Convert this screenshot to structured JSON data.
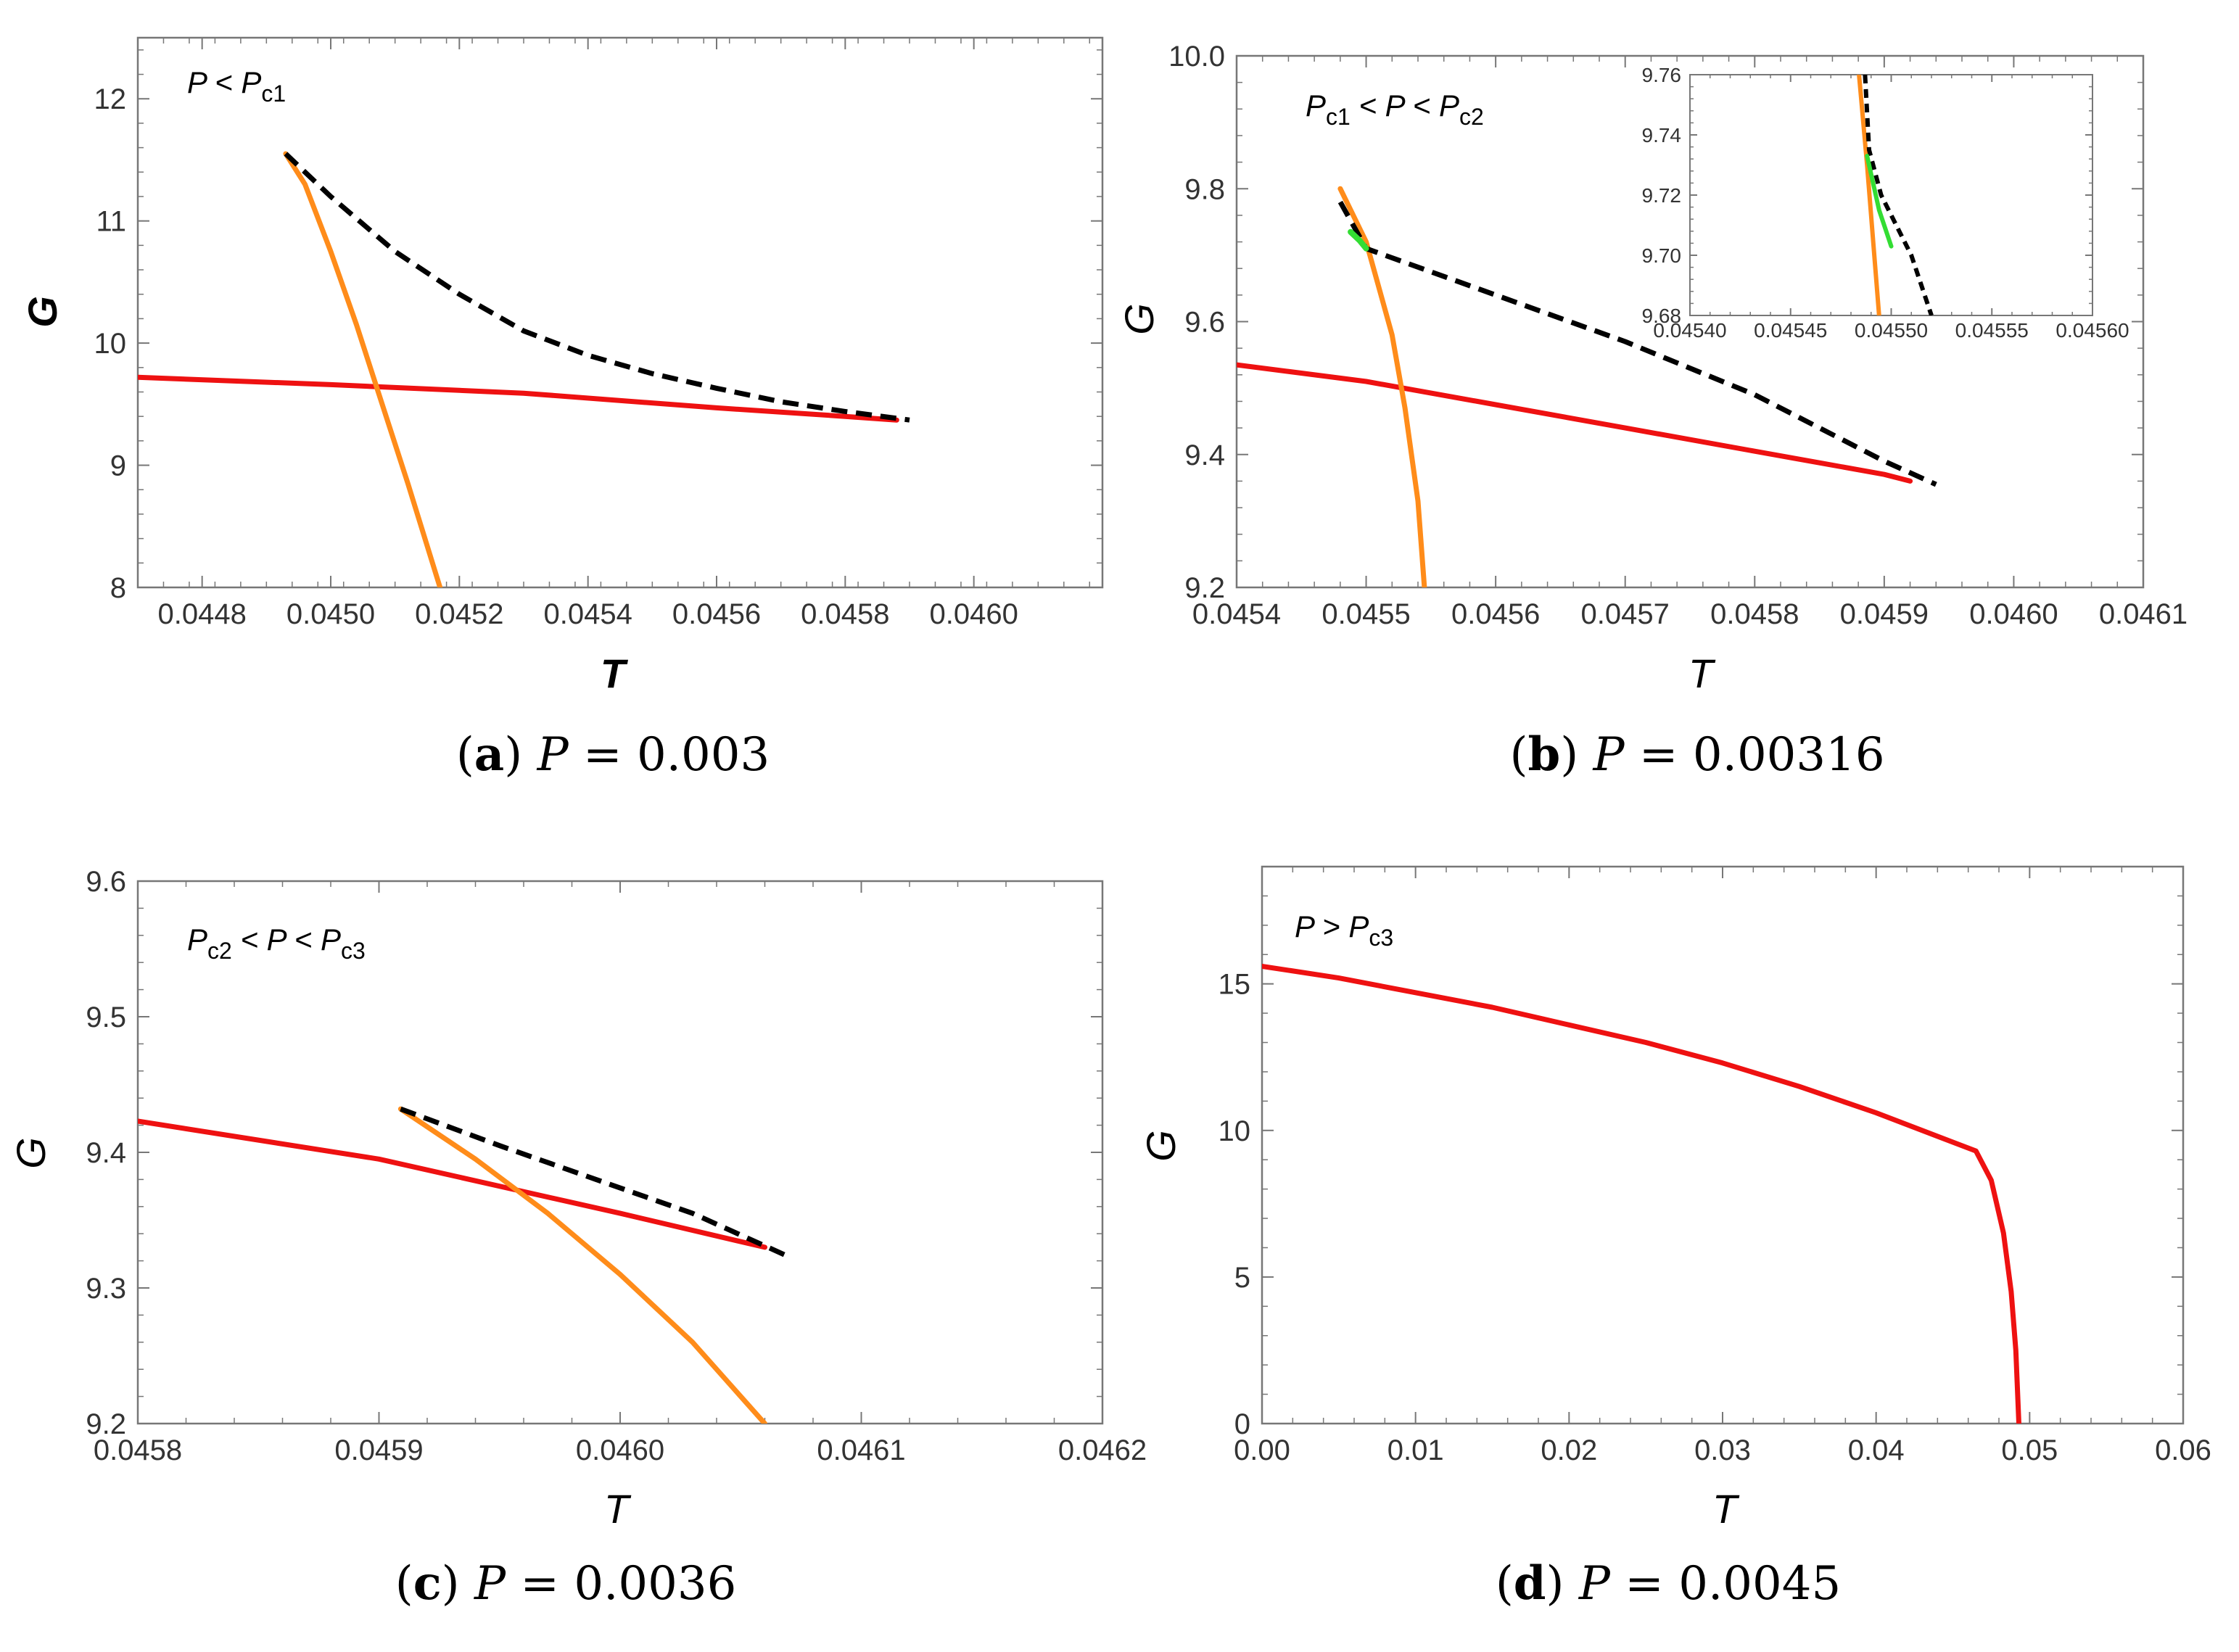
{
  "figure": {
    "colors": {
      "red": "#ee1111",
      "orange": "#ff8c1a",
      "black": "#000000",
      "green": "#33dd33",
      "frame": "#777777"
    }
  },
  "chart_data": [
    {
      "id": "a",
      "type": "line",
      "title": "",
      "xlabel": "T",
      "ylabel": "G",
      "xlim": [
        0.0447,
        0.0462
      ],
      "ylim": [
        8,
        12.5
      ],
      "xticks": [
        0.0448,
        0.045,
        0.0452,
        0.0454,
        0.0456,
        0.0458,
        0.046
      ],
      "xtick_labels": [
        "0.0448",
        "0.0450",
        "0.0452",
        "0.0454",
        "0.0456",
        "0.0458",
        "0.0460"
      ],
      "yticks": [
        8,
        9,
        10,
        11,
        12
      ],
      "ytick_labels": [
        "8",
        "9",
        "10",
        "11",
        "12"
      ],
      "annotation": {
        "main": "P",
        "op": " < ",
        "sym": "P",
        "sub": "c1"
      },
      "caption": {
        "letter": "a",
        "var": "P",
        "eq": " = 0.003"
      },
      "series": [
        {
          "name": "red branch",
          "color": "red",
          "dash": false,
          "points": [
            [
              0.0447,
              9.72
            ],
            [
              0.045,
              9.66
            ],
            [
              0.0453,
              9.59
            ],
            [
              0.0456,
              9.47
            ],
            [
              0.0458,
              9.4
            ],
            [
              0.04588,
              9.37
            ]
          ]
        },
        {
          "name": "orange branch",
          "color": "orange",
          "dash": false,
          "points": [
            [
              0.04493,
              11.55
            ],
            [
              0.04496,
              11.3
            ],
            [
              0.045,
              10.75
            ],
            [
              0.04504,
              10.15
            ],
            [
              0.04508,
              9.5
            ],
            [
              0.04512,
              8.85
            ],
            [
              0.04517,
              8.0
            ]
          ]
        },
        {
          "name": "black dashed branch",
          "color": "black",
          "dash": true,
          "points": [
            [
              0.04493,
              11.55
            ],
            [
              0.045,
              11.2
            ],
            [
              0.0451,
              10.75
            ],
            [
              0.0452,
              10.4
            ],
            [
              0.0453,
              10.1
            ],
            [
              0.0454,
              9.9
            ],
            [
              0.0455,
              9.75
            ],
            [
              0.0456,
              9.63
            ],
            [
              0.0457,
              9.52
            ],
            [
              0.0458,
              9.44
            ],
            [
              0.0459,
              9.37
            ]
          ]
        }
      ]
    },
    {
      "id": "b",
      "type": "line",
      "title": "",
      "xlabel": "T",
      "ylabel": "G",
      "xlim": [
        0.0454,
        0.0461
      ],
      "ylim": [
        9.2,
        10.0
      ],
      "xticks": [
        0.0454,
        0.0455,
        0.0456,
        0.0457,
        0.0458,
        0.0459,
        0.046,
        0.0461
      ],
      "xtick_labels": [
        "0.0454",
        "0.0455",
        "0.0456",
        "0.0457",
        "0.0458",
        "0.0459",
        "0.0460",
        "0.0461"
      ],
      "yticks": [
        9.2,
        9.4,
        9.6,
        9.8,
        10.0
      ],
      "ytick_labels": [
        "9.2",
        "9.4",
        "9.6",
        "9.8",
        "10.0"
      ],
      "annotation": {
        "main": "P",
        "mainsub": "c1",
        "op": " < P < ",
        "sym": "P",
        "sub": "c2"
      },
      "caption": {
        "letter": "b",
        "var": "P",
        "eq": " = 0.00316"
      },
      "series": [
        {
          "name": "red branch",
          "color": "red",
          "dash": false,
          "points": [
            [
              0.0454,
              9.535
            ],
            [
              0.0455,
              9.51
            ],
            [
              0.0456,
              9.475
            ],
            [
              0.0457,
              9.44
            ],
            [
              0.0458,
              9.405
            ],
            [
              0.0459,
              9.37
            ],
            [
              0.04592,
              9.36
            ]
          ]
        },
        {
          "name": "orange branch",
          "color": "orange",
          "dash": false,
          "points": [
            [
              0.04548,
              9.8
            ],
            [
              0.0455,
              9.72
            ],
            [
              0.04552,
              9.58
            ],
            [
              0.04553,
              9.47
            ],
            [
              0.04554,
              9.33
            ],
            [
              0.045545,
              9.2
            ]
          ]
        },
        {
          "name": "black dashed branch",
          "color": "black",
          "dash": true,
          "points": [
            [
              0.04548,
              9.78
            ],
            [
              0.0455,
              9.71
            ],
            [
              0.0456,
              9.64
            ],
            [
              0.0457,
              9.57
            ],
            [
              0.0458,
              9.49
            ],
            [
              0.0459,
              9.39
            ],
            [
              0.04594,
              9.355
            ]
          ]
        },
        {
          "name": "green branch",
          "color": "green",
          "dash": false,
          "points": [
            [
              0.045488,
              9.735
            ],
            [
              0.045495,
              9.722
            ],
            [
              0.0455,
              9.71
            ]
          ]
        }
      ],
      "inset": {
        "xlim": [
          0.0454,
          0.0456
        ],
        "ylim": [
          9.68,
          9.76
        ],
        "xticks": [
          0.0454,
          0.04545,
          0.0455,
          0.04555,
          0.0456
        ],
        "xtick_labels": [
          "0.04540",
          "0.04545",
          "0.04550",
          "0.04555",
          "0.04560"
        ],
        "yticks": [
          9.68,
          9.7,
          9.72,
          9.74,
          9.76
        ],
        "ytick_labels": [
          "9.68",
          "9.70",
          "9.72",
          "9.74",
          "9.76"
        ],
        "series": [
          {
            "name": "orange branch",
            "color": "orange",
            "dash": false,
            "points": [
              [
                0.045484,
                9.76
              ],
              [
                0.045488,
                9.73
              ],
              [
                0.045494,
                9.68
              ]
            ]
          },
          {
            "name": "black dashed branch",
            "color": "black",
            "dash": true,
            "points": [
              [
                0.045487,
                9.76
              ],
              [
                0.045489,
                9.735
              ],
              [
                0.045495,
                9.72
              ],
              [
                0.04551,
                9.7
              ],
              [
                0.04552,
                9.68
              ]
            ]
          },
          {
            "name": "green branch",
            "color": "green",
            "dash": false,
            "points": [
              [
                0.045488,
                9.733
              ],
              [
                0.045494,
                9.715
              ],
              [
                0.0455,
                9.703
              ]
            ]
          }
        ]
      }
    },
    {
      "id": "c",
      "type": "line",
      "title": "",
      "xlabel": "T",
      "ylabel": "G",
      "xlim": [
        0.0458,
        0.0462
      ],
      "ylim": [
        9.2,
        9.6
      ],
      "xticks": [
        0.0458,
        0.0459,
        0.046,
        0.0461,
        0.0462
      ],
      "xtick_labels": [
        "0.0458",
        "0.0459",
        "0.0460",
        "0.0461",
        "0.0462"
      ],
      "yticks": [
        9.2,
        9.3,
        9.4,
        9.5,
        9.6
      ],
      "ytick_labels": [
        "9.2",
        "9.3",
        "9.4",
        "9.5",
        "9.6"
      ],
      "annotation": {
        "main": "P",
        "mainsub": "c2",
        "op": " < P < ",
        "sym": "P",
        "sub": "c3"
      },
      "caption": {
        "letter": "c",
        "var": "P",
        "eq": " = 0.0036"
      },
      "series": [
        {
          "name": "red branch",
          "color": "red",
          "dash": false,
          "points": [
            [
              0.0458,
              9.423
            ],
            [
              0.0459,
              9.395
            ],
            [
              0.046,
              9.355
            ],
            [
              0.04606,
              9.33
            ]
          ]
        },
        {
          "name": "orange branch",
          "color": "orange",
          "dash": false,
          "points": [
            [
              0.045909,
              9.432
            ],
            [
              0.04594,
              9.395
            ],
            [
              0.04597,
              9.355
            ],
            [
              0.046,
              9.31
            ],
            [
              0.04603,
              9.26
            ],
            [
              0.04606,
              9.2
            ]
          ]
        },
        {
          "name": "black dashed branch",
          "color": "black",
          "dash": true,
          "points": [
            [
              0.045909,
              9.432
            ],
            [
              0.04595,
              9.405
            ],
            [
              0.04599,
              9.38
            ],
            [
              0.04603,
              9.355
            ],
            [
              0.04607,
              9.323
            ]
          ]
        }
      ]
    },
    {
      "id": "d",
      "type": "line",
      "title": "",
      "xlabel": "T",
      "ylabel": "G",
      "xlim": [
        0,
        0.06
      ],
      "ylim": [
        0,
        19
      ],
      "xticks": [
        0,
        0.01,
        0.02,
        0.03,
        0.04,
        0.05,
        0.06
      ],
      "xtick_labels": [
        "0.00",
        "0.01",
        "0.02",
        "0.03",
        "0.04",
        "0.05",
        "0.06"
      ],
      "yticks": [
        0,
        5,
        10,
        15
      ],
      "ytick_labels": [
        "0",
        "5",
        "10",
        "15"
      ],
      "annotation": {
        "main": "P",
        "op": " > ",
        "sym": "P",
        "sub": "c3"
      },
      "caption": {
        "letter": "d",
        "var": "P",
        "eq": " = 0.0045"
      },
      "series": [
        {
          "name": "red branch",
          "color": "red",
          "dash": false,
          "points": [
            [
              0,
              15.6
            ],
            [
              0.005,
              15.2
            ],
            [
              0.01,
              14.7
            ],
            [
              0.015,
              14.2
            ],
            [
              0.02,
              13.6
            ],
            [
              0.025,
              13.0
            ],
            [
              0.03,
              12.3
            ],
            [
              0.035,
              11.5
            ],
            [
              0.04,
              10.6
            ],
            [
              0.045,
              9.6
            ],
            [
              0.0465,
              9.3
            ],
            [
              0.0475,
              8.3
            ],
            [
              0.0483,
              6.5
            ],
            [
              0.0488,
              4.5
            ],
            [
              0.0491,
              2.5
            ],
            [
              0.0493,
              0
            ]
          ]
        }
      ]
    }
  ]
}
